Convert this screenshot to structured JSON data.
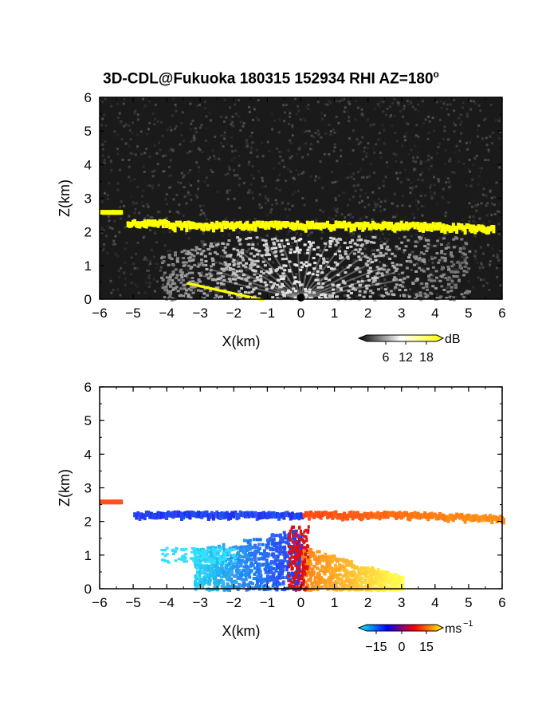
{
  "title": {
    "text": "3D-CDL@Fukuoka 180315 152934 RHI AZ=180",
    "degree_sup": "o"
  },
  "chart_data": [
    {
      "type": "heatmap",
      "title": "3D-CDL@Fukuoka 180315 152934 RHI AZ=180°",
      "xlabel": "X(km)",
      "ylabel": "Z(km)",
      "xlim": [
        -6,
        6
      ],
      "ylim": [
        0,
        6
      ],
      "x_ticks": [
        -6,
        -5,
        -4,
        -3,
        -2,
        -1,
        0,
        1,
        2,
        3,
        4,
        5,
        6
      ],
      "y_ticks": [
        0,
        1,
        2,
        3,
        4,
        5,
        6
      ],
      "background_color": "#1a1a1a",
      "colorbar": {
        "unit": "dB",
        "tick_labels": [
          "6",
          "12",
          "18"
        ],
        "colors": [
          "#000000",
          "#ffffff",
          "#ffff00"
        ]
      },
      "features": {
        "cloud_layer_z_km": 2.2,
        "cloud_layer_color": "#ffff00",
        "lidar_origin_x_km": 0
      }
    },
    {
      "type": "heatmap",
      "xlabel": "X(km)",
      "ylabel": "Z(km)",
      "xlim": [
        -6,
        6
      ],
      "ylim": [
        0,
        6
      ],
      "x_ticks": [
        -6,
        -5,
        -4,
        -3,
        -2,
        -1,
        0,
        1,
        2,
        3,
        4,
        5,
        6
      ],
      "y_ticks": [
        0,
        1,
        2,
        3,
        4,
        5,
        6
      ],
      "background_color": "#ffffff",
      "colorbar": {
        "unit": "ms",
        "unit_sup": "-1",
        "tick_labels": [
          "-15",
          "0",
          "15"
        ],
        "colors": [
          "#00ffff",
          "#0000ff",
          "#ff0000",
          "#ffff00"
        ]
      },
      "features": {
        "negative_velocity_color": "#1e50ff",
        "positive_velocity_color": "#ff6020"
      }
    }
  ]
}
